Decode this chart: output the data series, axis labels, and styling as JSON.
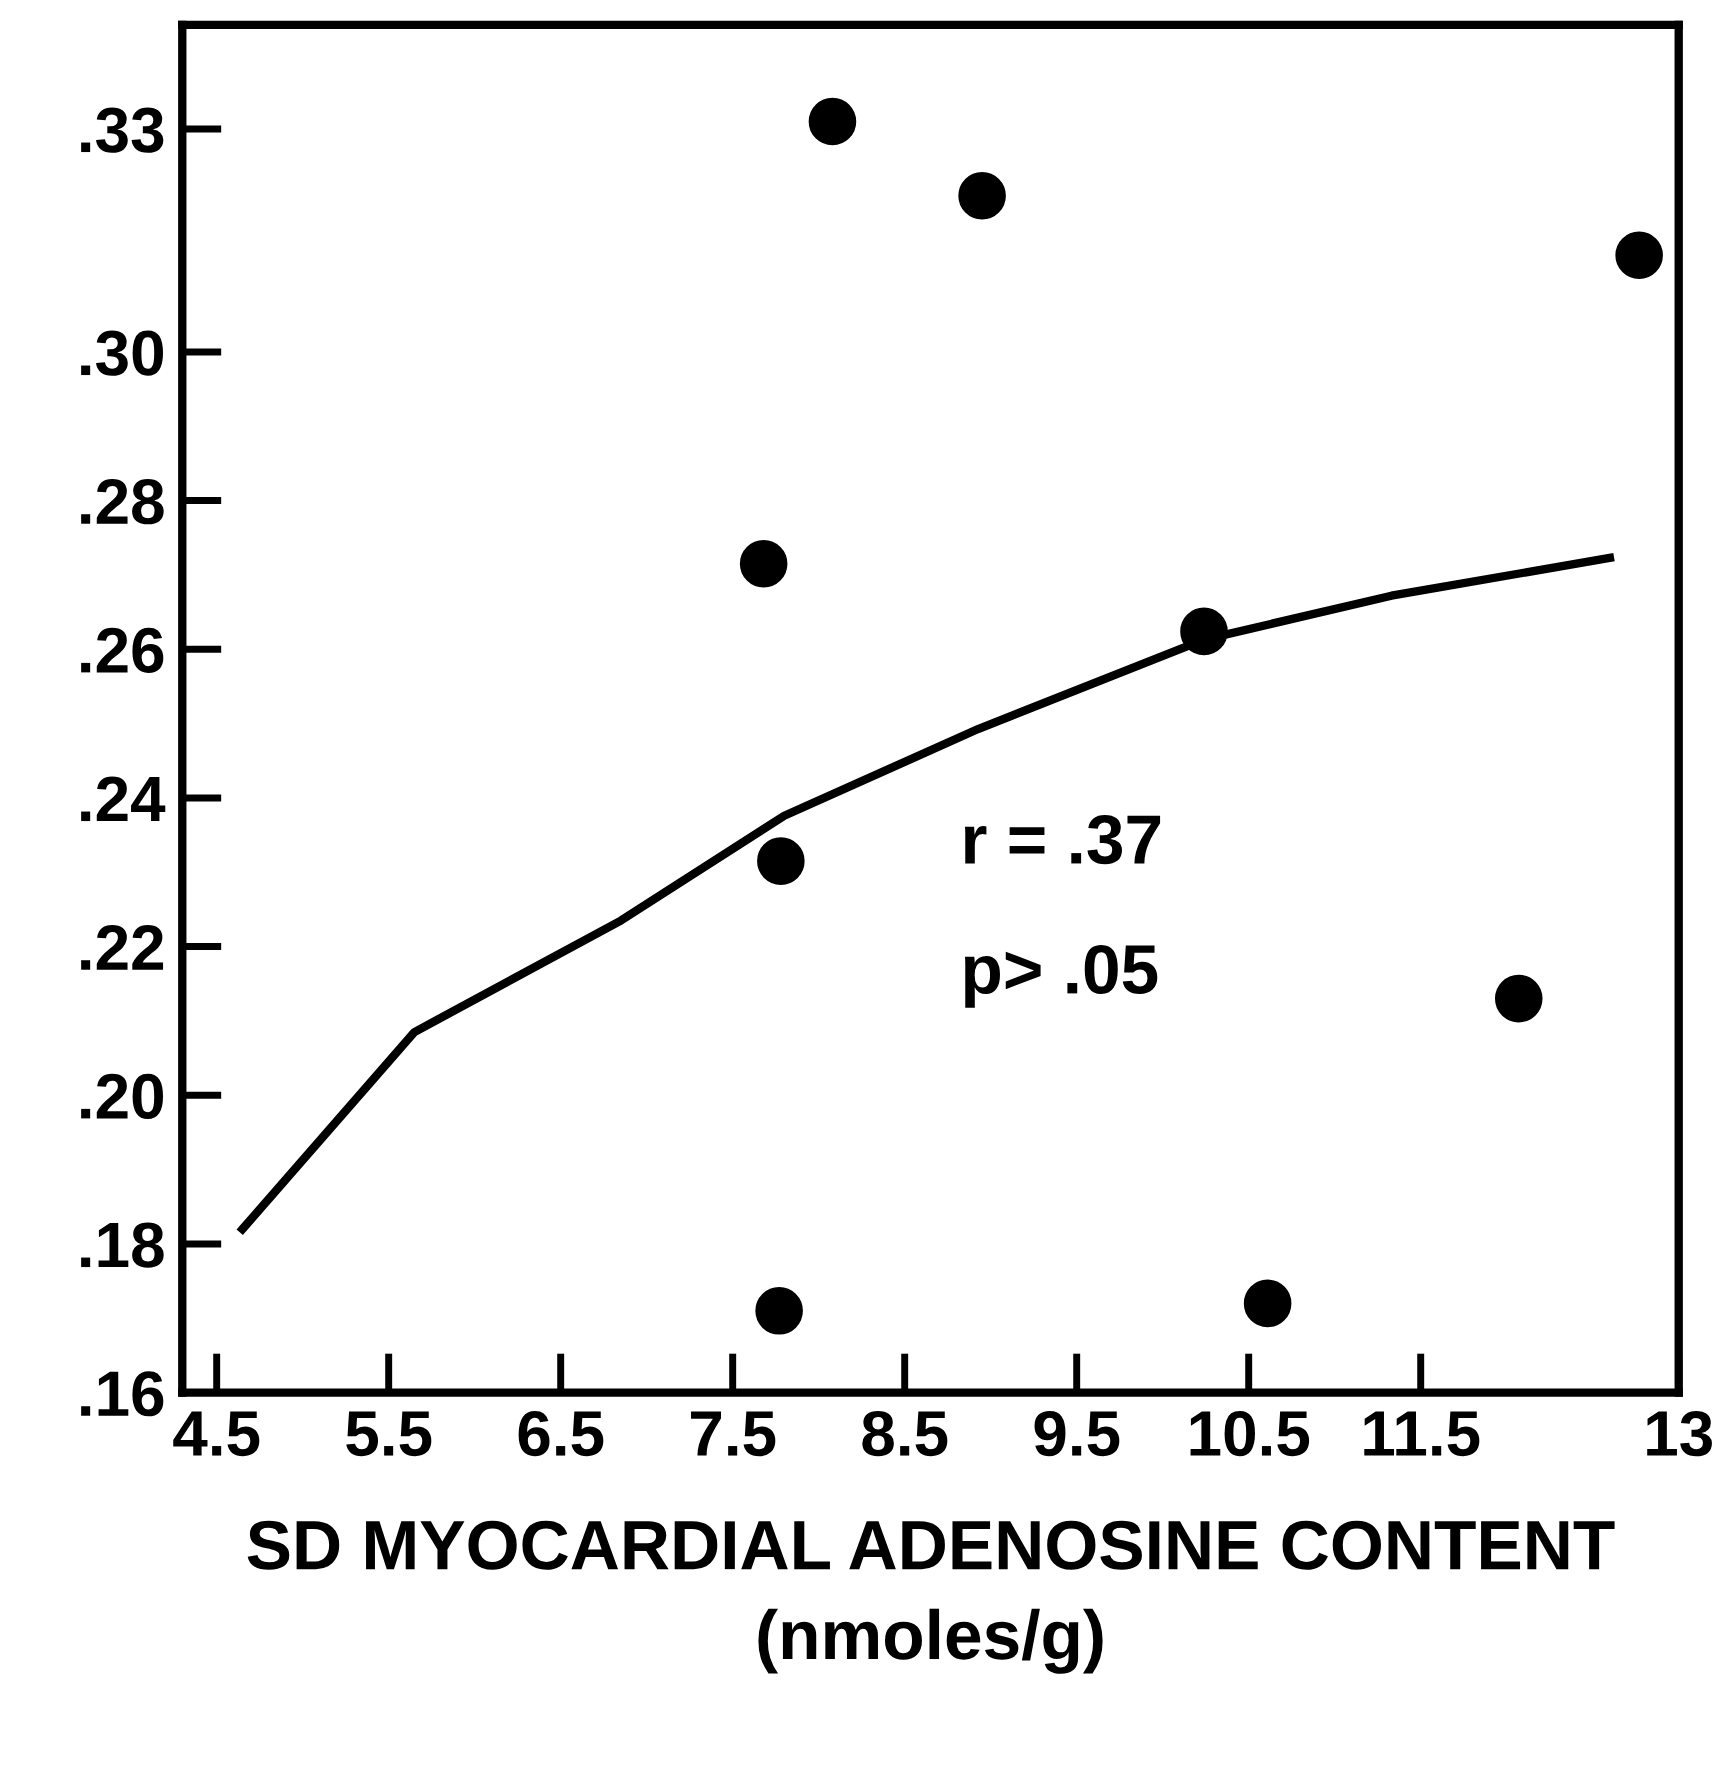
{
  "chart_data": {
    "type": "scatter",
    "xlabel": "SD MYOCARDIAL ADENOSINE CONTENT\n(nmoles/g)",
    "xlim": [
      4.3,
      13
    ],
    "xticks": [
      4.5,
      5.5,
      6.5,
      7.5,
      8.5,
      9.5,
      10.5,
      11.5,
      13
    ],
    "ylim": [
      0.16,
      0.344
    ],
    "yticks": [
      {
        "value": 0.16,
        "label": ".16"
      },
      {
        "value": 0.18,
        "label": ".18"
      },
      {
        "value": 0.2,
        "label": ".20"
      },
      {
        "value": 0.22,
        "label": ".22"
      },
      {
        "value": 0.24,
        "label": ".24"
      },
      {
        "value": 0.26,
        "label": ".26"
      },
      {
        "value": 0.28,
        "label": ".28"
      },
      {
        "value": 0.3,
        "label": ".30"
      },
      {
        "value": 0.33,
        "label": ".33"
      }
    ],
    "grid": false,
    "legend": false,
    "marker": "circle",
    "annotations": [
      "r = .37",
      "p> .05"
    ],
    "series": [
      {
        "color": "#000000",
        "x": [
          8.08,
          8.95,
          12.77,
          7.68,
          10.24,
          7.78,
          12.07,
          7.77,
          10.61
        ],
        "values": [
          0.331,
          0.321,
          0.313,
          0.2715,
          0.2624,
          0.2315,
          0.213,
          0.171,
          0.172
        ]
      },
      {
        "type": "line",
        "color": "#000000",
        "marker": "none",
        "line_style": "solid",
        "x": [
          4.65,
          5.65,
          6.85,
          7.8,
          8.93,
          10.24,
          11.33,
          12.6
        ],
        "values": [
          0.182,
          0.2085,
          0.2235,
          0.2376,
          0.2493,
          0.2613,
          0.2672,
          0.2723
        ]
      }
    ]
  }
}
